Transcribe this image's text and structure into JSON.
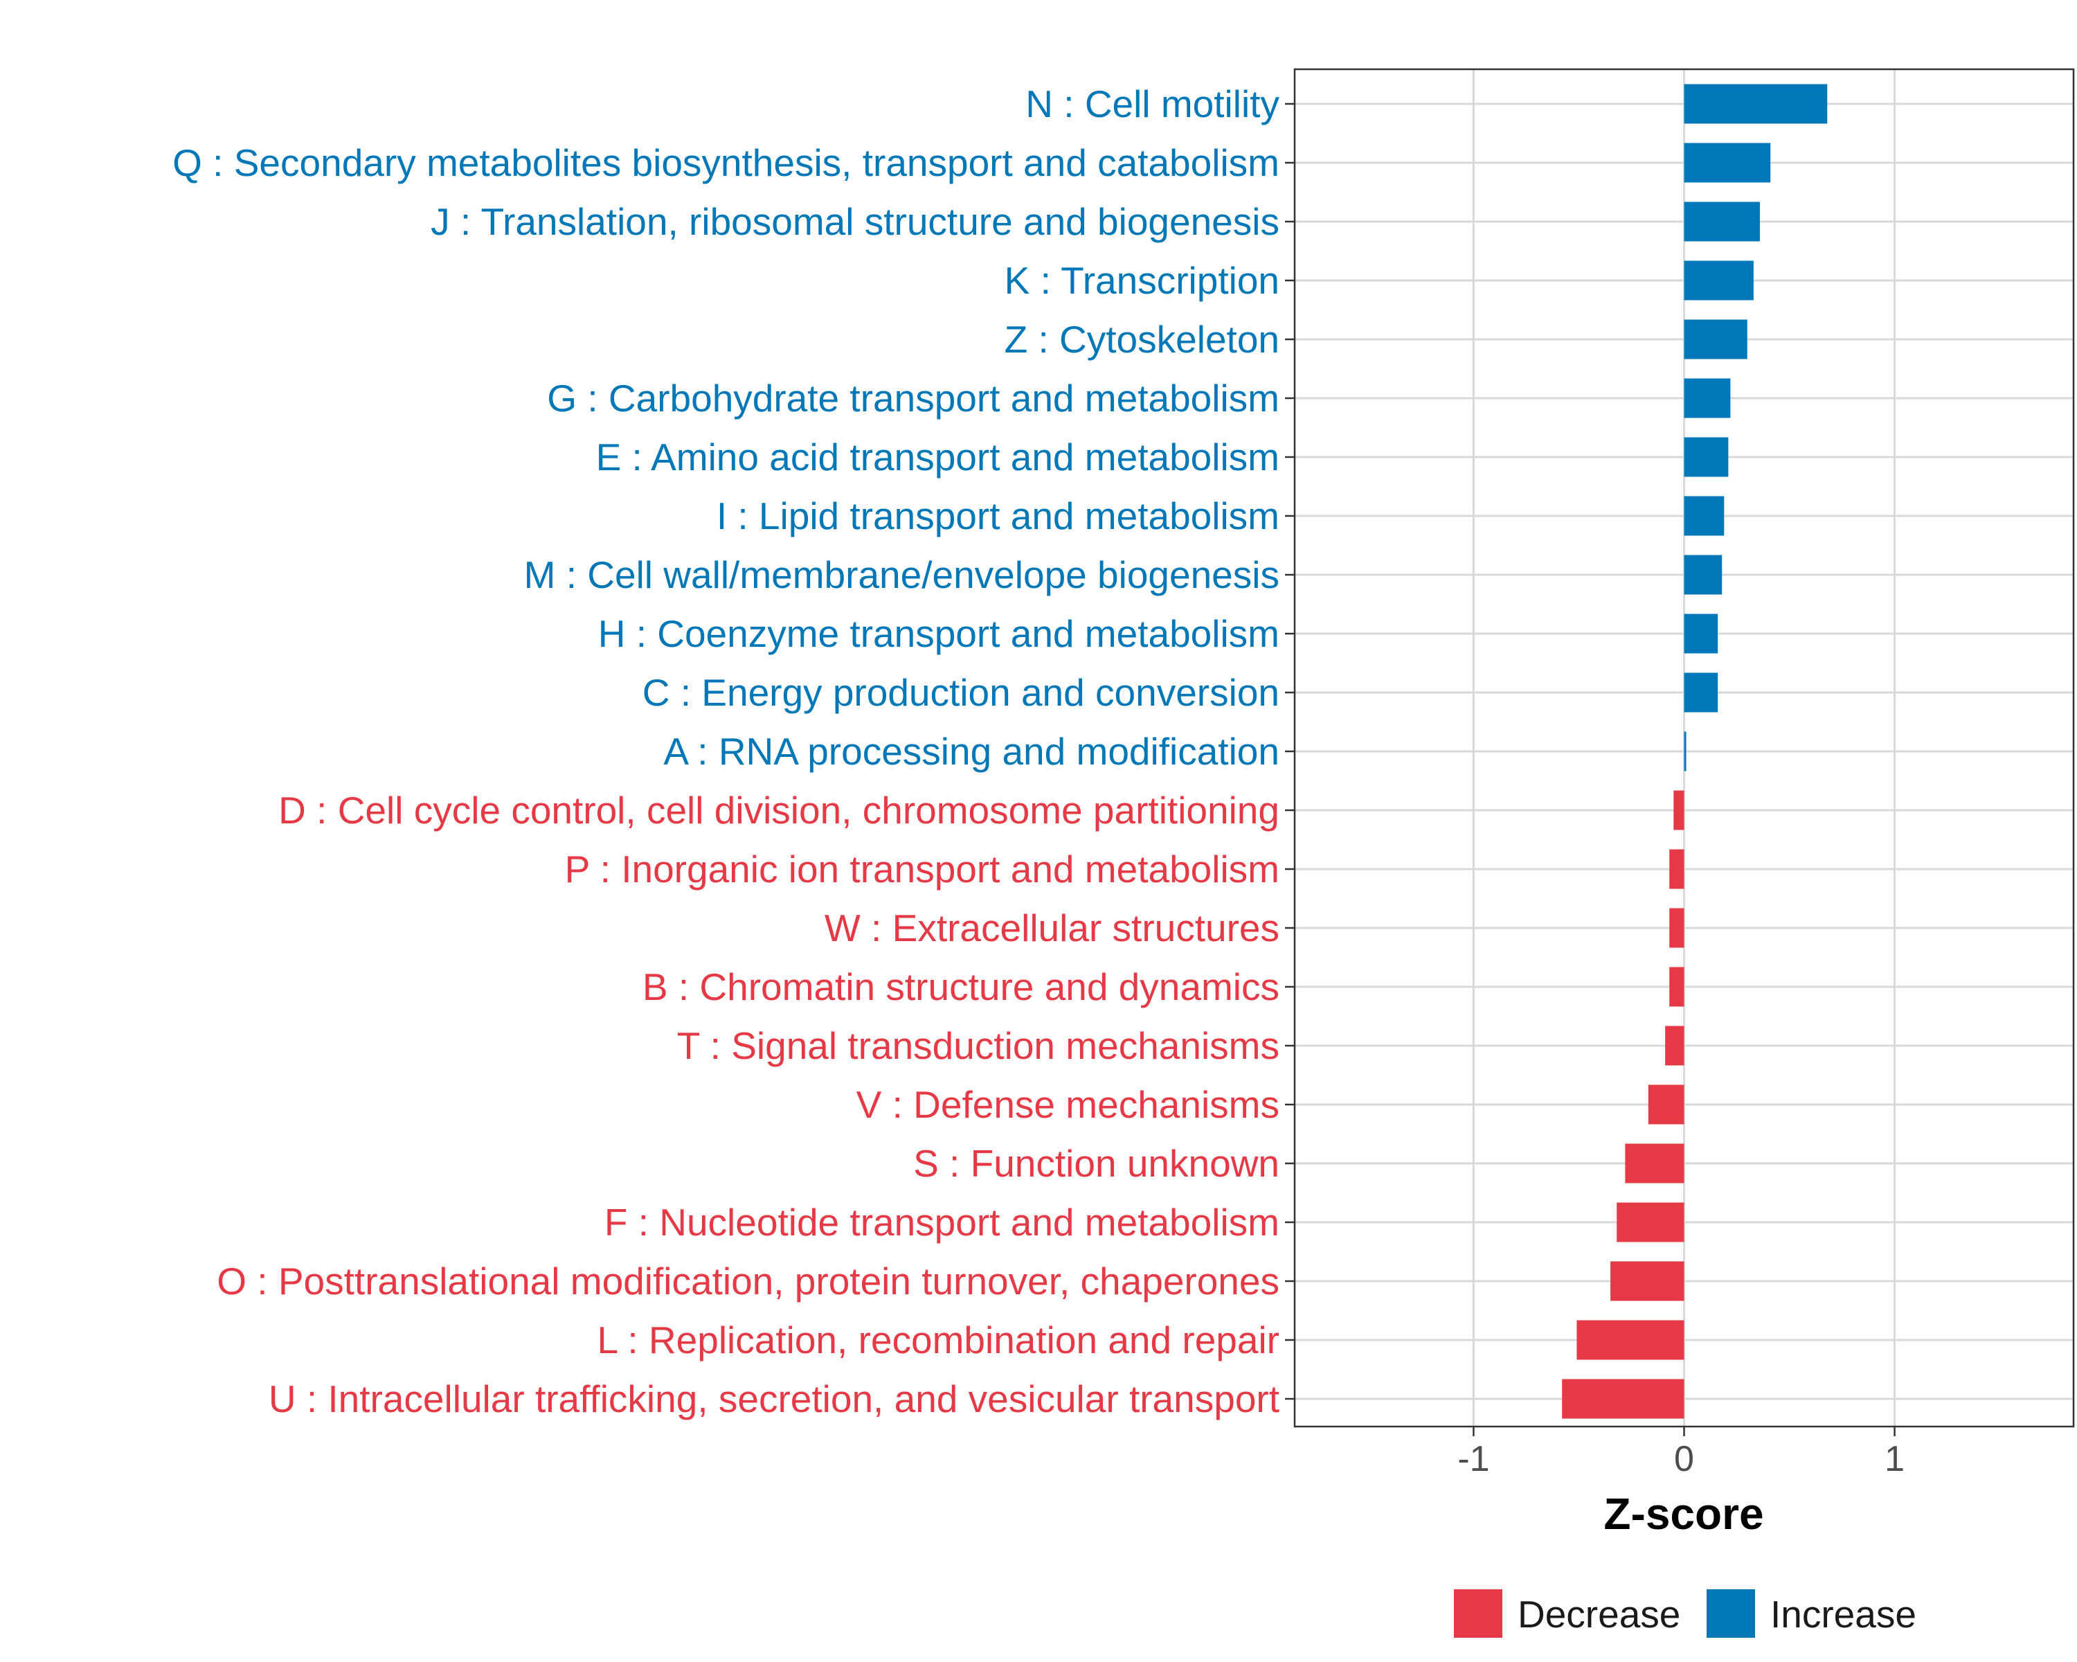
{
  "chart_data": {
    "type": "bar",
    "orientation": "horizontal",
    "title": "",
    "xlabel": "Z-score",
    "ylabel": "",
    "xlim": [
      -1.85,
      1.85
    ],
    "xticks": [
      -1,
      0,
      1
    ],
    "xtick_labels": [
      "-1",
      "0",
      "1"
    ],
    "grid": true,
    "legend_position": "bottom",
    "colors": {
      "Decrease": "#e63946",
      "Increase": "#0077b6"
    },
    "legend": [
      {
        "name": "Decrease",
        "color": "#e63946"
      },
      {
        "name": "Increase",
        "color": "#0077b6"
      }
    ],
    "categories": [
      "N : Cell motility",
      "Q : Secondary metabolites biosynthesis, transport and catabolism",
      "J : Translation, ribosomal structure and biogenesis",
      "K : Transcription",
      "Z : Cytoskeleton",
      "G : Carbohydrate transport and metabolism",
      "E : Amino acid transport and metabolism",
      "I : Lipid transport and metabolism",
      "M : Cell wall/membrane/envelope biogenesis",
      "H : Coenzyme transport and metabolism",
      "C : Energy production and conversion",
      "A : RNA processing and modification",
      "D : Cell cycle control, cell division, chromosome partitioning",
      "P : Inorganic ion transport and metabolism",
      "W : Extracellular structures",
      "B : Chromatin structure and dynamics",
      "T : Signal transduction mechanisms",
      "V : Defense mechanisms",
      "S : Function unknown",
      "F : Nucleotide transport and metabolism",
      "O : Posttranslational modification, protein turnover, chaperones",
      "L : Replication, recombination and repair",
      "U : Intracellular trafficking, secretion, and vesicular transport"
    ],
    "values": [
      0.68,
      0.41,
      0.36,
      0.33,
      0.3,
      0.22,
      0.21,
      0.19,
      0.18,
      0.16,
      0.16,
      0.01,
      -0.05,
      -0.07,
      -0.07,
      -0.07,
      -0.09,
      -0.17,
      -0.28,
      -0.32,
      -0.35,
      -0.51,
      -0.58
    ],
    "direction": [
      "Increase",
      "Increase",
      "Increase",
      "Increase",
      "Increase",
      "Increase",
      "Increase",
      "Increase",
      "Increase",
      "Increase",
      "Increase",
      "Increase",
      "Decrease",
      "Decrease",
      "Decrease",
      "Decrease",
      "Decrease",
      "Decrease",
      "Decrease",
      "Decrease",
      "Decrease",
      "Decrease",
      "Decrease"
    ]
  }
}
